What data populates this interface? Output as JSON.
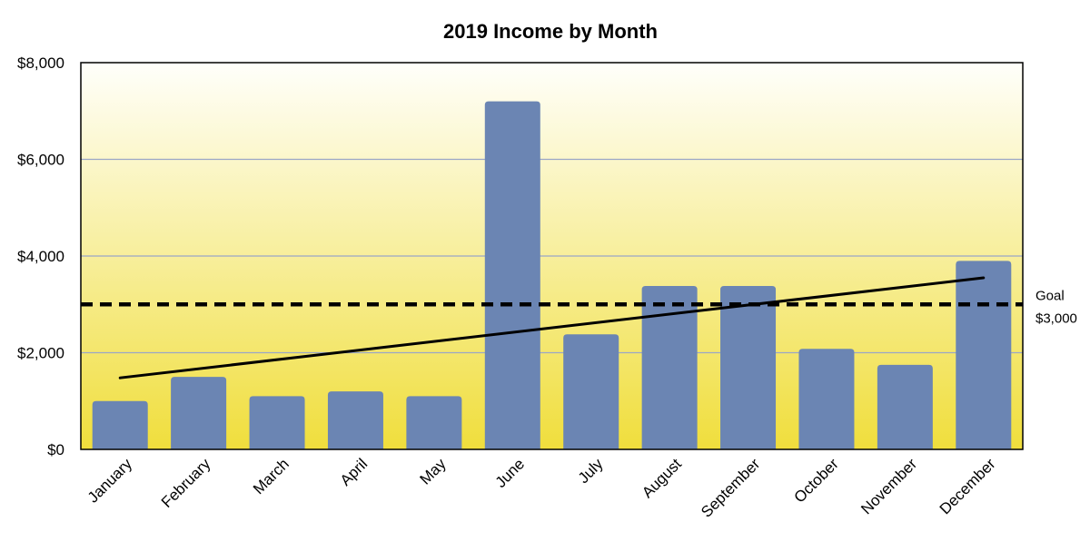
{
  "chart_data": {
    "type": "bar",
    "title": "2019 Income by Month",
    "xlabel": "",
    "ylabel": "",
    "categories": [
      "January",
      "February",
      "March",
      "April",
      "May",
      "June",
      "July",
      "August",
      "September",
      "October",
      "November",
      "December"
    ],
    "values": [
      1000,
      1500,
      1100,
      1200,
      1100,
      7200,
      2380,
      3380,
      3380,
      2080,
      1750,
      3900
    ],
    "ylim": [
      0,
      8000
    ],
    "yticks": [
      0,
      2000,
      4000,
      6000,
      8000
    ],
    "ytick_labels": [
      "$0",
      "$2,000",
      "$4,000",
      "$6,000",
      "$8,000"
    ],
    "grid": true,
    "bar_color": "#6b85b3",
    "background_gradient": [
      "#fffffb",
      "#f0de3c"
    ],
    "trendline": {
      "start": 1480,
      "end": 3550,
      "color": "#000000"
    },
    "goal": {
      "value": 3000,
      "label": "Goal",
      "value_label": "$3,000",
      "style": "dashed"
    }
  }
}
